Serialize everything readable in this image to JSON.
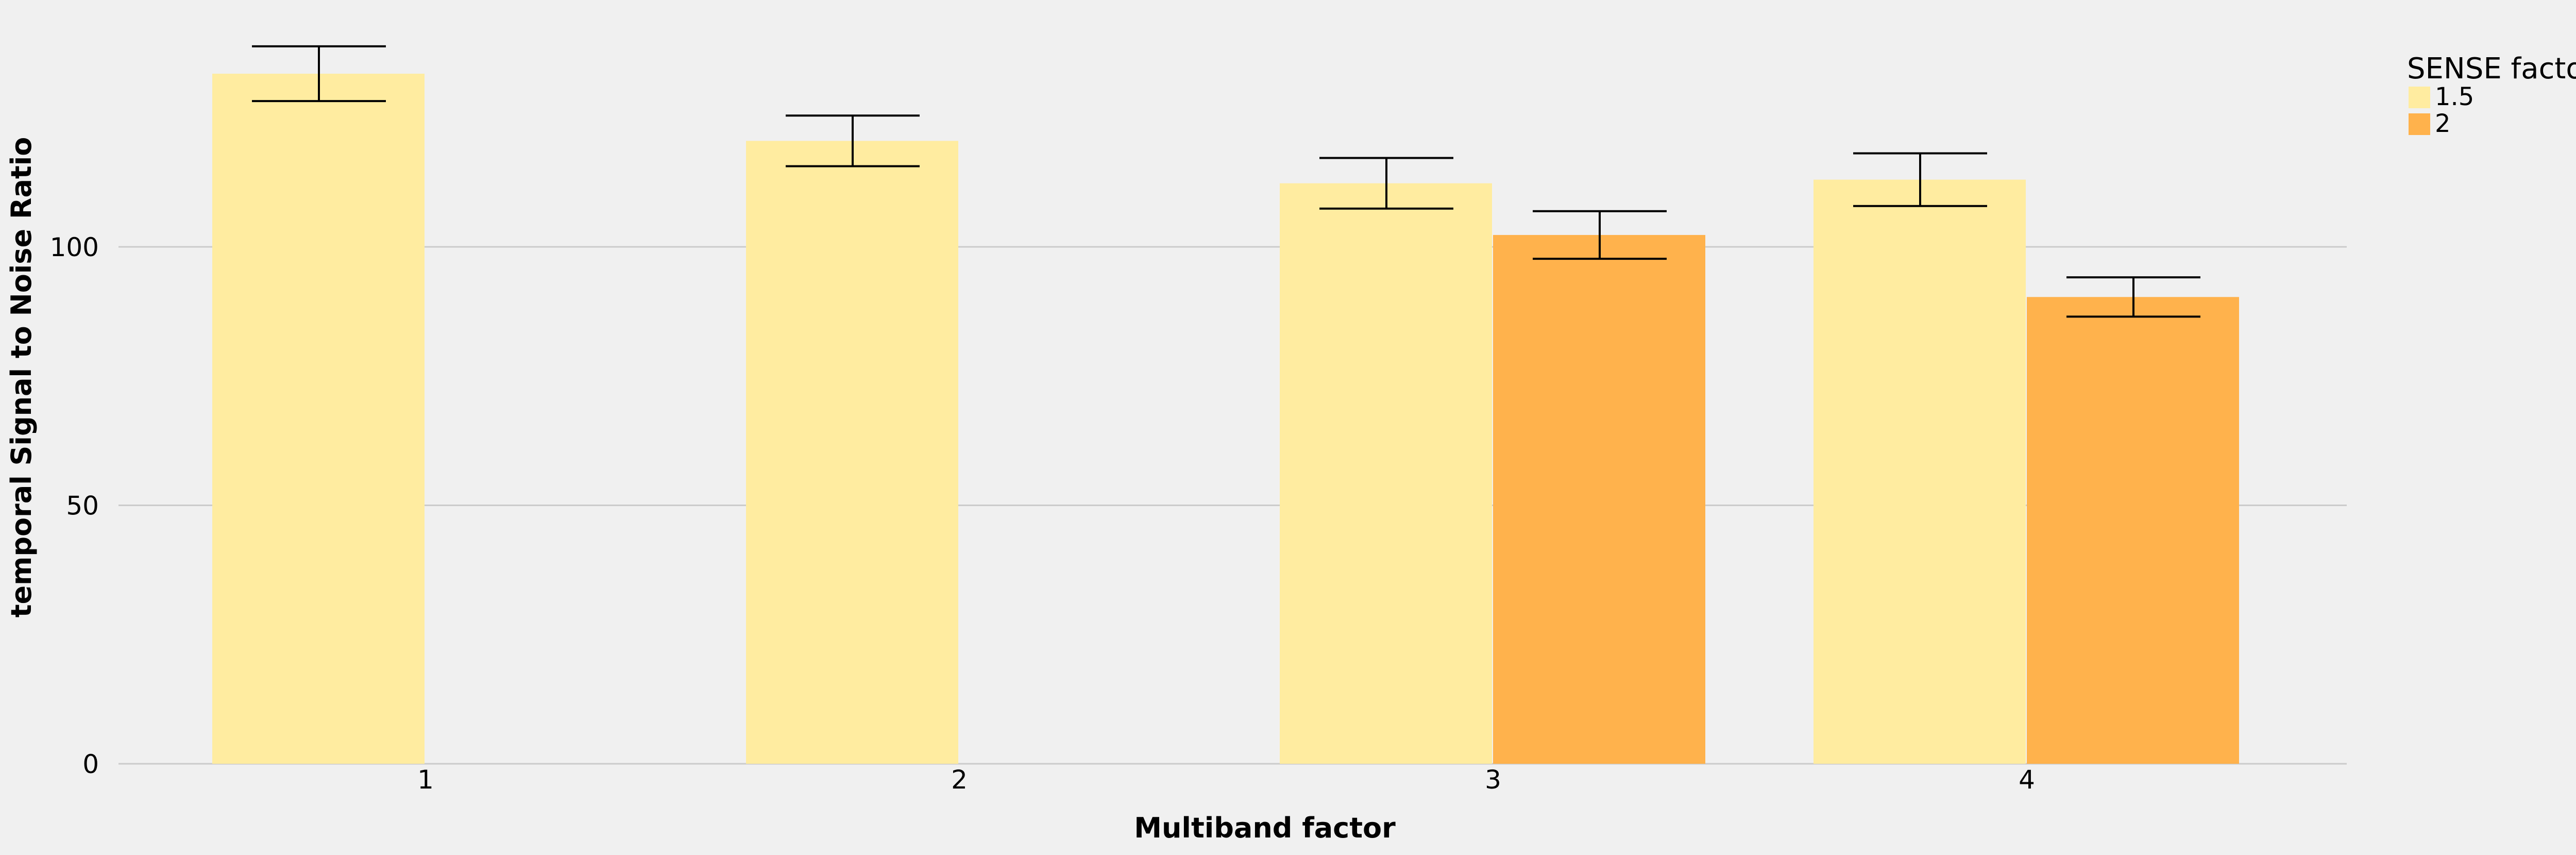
{
  "chart_data": {
    "type": "bar",
    "xlabel": "Multiband factor",
    "ylabel": "temporal Signal to Noise Ratio",
    "categories": [
      "1",
      "2",
      "3",
      "4"
    ],
    "ylim": [
      0,
      140
    ],
    "yticks": [
      "0",
      "50",
      "100"
    ],
    "grid": true,
    "legend": {
      "title": "SENSE factor",
      "placement": "top-right-outside"
    },
    "series": [
      {
        "name": "1.5",
        "color": "#ffeca0",
        "values": [
          133.5,
          120.5,
          112.3,
          113
        ],
        "error": [
          5.3,
          4.9,
          4.9,
          5.1
        ]
      },
      {
        "name": "2",
        "color": "#ffb24c",
        "values": [
          null,
          null,
          102.3,
          90.3
        ],
        "error": [
          null,
          null,
          4.6,
          3.8
        ]
      }
    ]
  }
}
